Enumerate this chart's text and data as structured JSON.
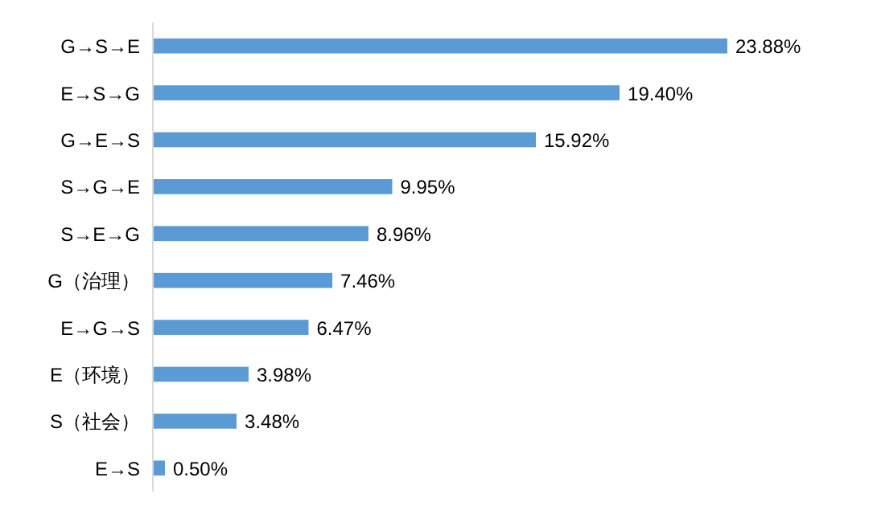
{
  "chart_data": {
    "type": "bar",
    "orientation": "horizontal",
    "categories": [
      "G→S→E",
      "E→S→G",
      "G→E→S",
      "S→G→E",
      "S→E→G",
      "G（治理）",
      "E→G→S",
      "E（环境）",
      "S（社会）",
      "E→S"
    ],
    "values": [
      23.88,
      19.4,
      15.92,
      9.95,
      8.96,
      7.46,
      6.47,
      3.98,
      3.48,
      0.5
    ],
    "value_labels": [
      "23.88%",
      "19.40%",
      "15.92%",
      "9.95%",
      "8.96%",
      "7.46%",
      "6.47%",
      "3.98%",
      "3.48%",
      "0.50%"
    ],
    "color": "#5b9bd5"
  }
}
